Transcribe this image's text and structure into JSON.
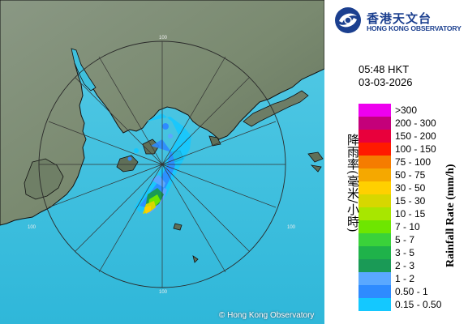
{
  "credit": "© Hong Kong Observatory",
  "logo": {
    "name_cn": "香港天文台",
    "name_en": "HONG KONG OBSERVATORY"
  },
  "timestamp": {
    "time": "05:48 HKT",
    "date": "03-03-2026"
  },
  "legend": {
    "title_cn": "降雨率(毫米/小時)",
    "title_en": "Rainfall Rate (mm/h)",
    "items": [
      {
        "label": ">300",
        "color": "#ee00ee"
      },
      {
        "label": "200 - 300",
        "color": "#c4007a"
      },
      {
        "label": "150 - 200",
        "color": "#e8003c"
      },
      {
        "label": "100 - 150",
        "color": "#ff1a00"
      },
      {
        "label": "75 - 100",
        "color": "#f57c00"
      },
      {
        "label": "50 - 75",
        "color": "#f5a800"
      },
      {
        "label": "30 - 50",
        "color": "#ffd000"
      },
      {
        "label": "15 - 30",
        "color": "#d7d700"
      },
      {
        "label": "10 - 15",
        "color": "#a8e600"
      },
      {
        "label": "7 - 10",
        "color": "#6ee600"
      },
      {
        "label": "5 - 7",
        "color": "#3ad23a"
      },
      {
        "label": "3 - 5",
        "color": "#1fb24a"
      },
      {
        "label": "2 - 3",
        "color": "#1a9a56"
      },
      {
        "label": "1 - 2",
        "color": "#5aa8ff"
      },
      {
        "label": "0.50 - 1",
        "color": "#2e8bff"
      },
      {
        "label": "0.15 - 0.50",
        "color": "#14c8ff"
      }
    ]
  },
  "range_rings": {
    "ring_label": "100"
  },
  "colors": {
    "sea": "#45c8e0",
    "land": "#7d8c74",
    "logo_blue": "#1b3f8f"
  }
}
